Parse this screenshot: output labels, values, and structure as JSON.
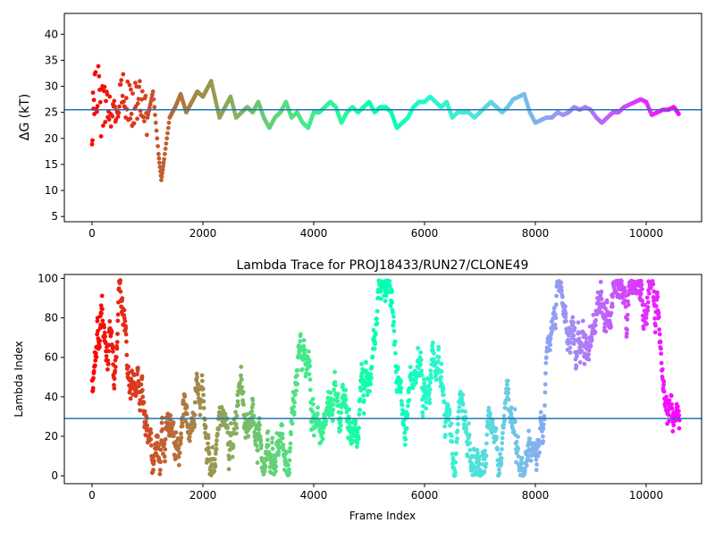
{
  "chart_data": [
    {
      "type": "scatter",
      "title": "",
      "xlabel": "",
      "ylabel": "ΔG (kT)",
      "xlim": [
        -500,
        11000
      ],
      "ylim": [
        4,
        44
      ],
      "xticks": [
        0,
        2000,
        4000,
        6000,
        8000,
        10000
      ],
      "yticks": [
        5,
        10,
        15,
        20,
        25,
        30,
        35,
        40
      ],
      "hline": 25.5,
      "hline_color": "#1f77b4",
      "colormap": "rainbow",
      "n_frames": 10600,
      "series": [
        {
          "x": [
            0,
            50,
            150,
            250,
            400,
            550,
            700,
            850,
            1000,
            1100,
            1200,
            1250,
            1300,
            1400,
            1500,
            1600,
            1700,
            1800,
            1900,
            2000,
            2150,
            2300,
            2400,
            2500,
            2600,
            2700,
            2800,
            2900,
            3000,
            3100,
            3200,
            3300,
            3400,
            3500,
            3600,
            3700,
            3800,
            3900,
            4000,
            4100,
            4200,
            4300,
            4400,
            4500,
            4600,
            4700,
            4800,
            4900,
            5000,
            5100,
            5200,
            5300,
            5400,
            5500,
            5600,
            5700,
            5800,
            5900,
            6000,
            6100,
            6200,
            6300,
            6400,
            6500,
            6600,
            6700,
            6800,
            6900,
            7000,
            7100,
            7200,
            7300,
            7400,
            7500,
            7600,
            7700,
            7800,
            7900,
            8000,
            8100,
            8200,
            8300,
            8400,
            8500,
            8600,
            8700,
            8800,
            8900,
            9000,
            9100,
            9200,
            9300,
            9400,
            9500,
            9600,
            9700,
            9800,
            9900,
            10000,
            10100,
            10200,
            10300,
            10400,
            10500,
            10600
          ],
          "y": [
            24,
            30,
            24,
            27,
            25,
            29,
            26,
            28,
            24,
            29,
            17,
            12,
            16,
            24,
            26,
            28.5,
            25,
            27,
            29,
            28,
            31,
            24,
            26,
            28,
            24,
            25,
            26,
            25,
            27,
            24,
            22,
            24,
            25,
            27,
            24,
            25,
            23,
            22,
            25,
            25,
            26,
            27,
            26,
            23,
            25,
            26,
            25,
            26,
            27,
            25,
            26,
            26,
            25,
            22,
            23,
            24,
            26,
            27,
            27,
            28,
            27,
            26,
            27,
            24,
            25,
            25,
            25,
            24,
            25,
            26,
            27,
            26,
            25,
            26,
            27.5,
            28,
            28.5,
            25,
            23,
            23.5,
            24,
            24,
            25,
            24.5,
            25,
            26,
            25.5,
            26,
            25.5,
            24,
            23,
            24,
            25,
            25,
            26,
            26.5,
            27,
            27.5,
            27,
            24.5,
            25,
            25.5,
            25.5,
            26,
            24.5
          ]
        }
      ]
    },
    {
      "type": "scatter",
      "title": "Lambda Trace for PROJ18433/RUN27/CLONE49",
      "xlabel": "Frame Index",
      "ylabel": "Lambda Index",
      "xlim": [
        -500,
        11000
      ],
      "ylim": [
        -4,
        102
      ],
      "xticks": [
        0,
        2000,
        4000,
        6000,
        8000,
        10000
      ],
      "yticks": [
        0,
        20,
        40,
        60,
        80,
        100
      ],
      "hline": 29,
      "hline_color": "#1f77b4",
      "colormap": "rainbow",
      "n_frames": 10600,
      "lambda_range": [
        0,
        99
      ]
    }
  ],
  "tick_labels": {
    "x": [
      "0",
      "2000",
      "4000",
      "6000",
      "8000",
      "10000"
    ],
    "y_top": [
      "5",
      "10",
      "15",
      "20",
      "25",
      "30",
      "35",
      "40"
    ],
    "y_bottom": [
      "0",
      "20",
      "40",
      "60",
      "80",
      "100"
    ]
  }
}
